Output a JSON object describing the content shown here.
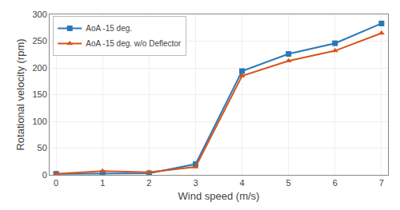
{
  "chart_data": {
    "type": "line",
    "x": [
      0,
      1,
      2,
      3,
      4,
      5,
      6,
      7
    ],
    "series": [
      {
        "name": "AoA -15 deg.",
        "color": "#2878b8",
        "marker": "square",
        "values": [
          2,
          3,
          3,
          20,
          194,
          226,
          246,
          283
        ]
      },
      {
        "name": "AoA -15 deg. w/o Deflector",
        "color": "#d95319",
        "marker": "triangle",
        "values": [
          2,
          7,
          5,
          15,
          185,
          213,
          232,
          265
        ]
      }
    ],
    "xlabel": "Wind speed (m/s)",
    "ylabel": "Rotational velocity (rpm)",
    "xlim": [
      -0.14,
      7.14
    ],
    "ylim": [
      0,
      300
    ],
    "xticks": [
      0,
      1,
      2,
      3,
      4,
      5,
      6,
      7
    ],
    "yticks": [
      0,
      50,
      100,
      150,
      200,
      250,
      300
    ],
    "grid": true,
    "legend": "upper left"
  }
}
